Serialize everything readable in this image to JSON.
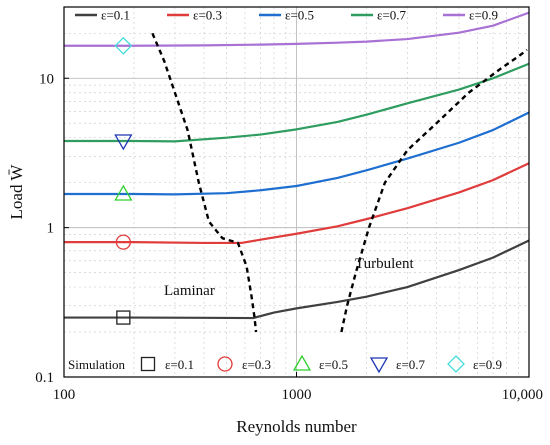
{
  "chart_data": {
    "type": "line",
    "xlabel": "Reynolds number",
    "ylabel": "Load W̄",
    "xscale": "log",
    "yscale": "log",
    "xlim": [
      100,
      10000
    ],
    "ylim": [
      0.1,
      30
    ],
    "grid": true,
    "x_ticks": [
      {
        "value": 100,
        "label": "100"
      },
      {
        "value": 1000,
        "label": "1000"
      },
      {
        "value": 10000,
        "label": "10,000"
      }
    ],
    "y_ticks": [
      {
        "value": 0.1,
        "label": "0.1"
      },
      {
        "value": 1,
        "label": "1"
      },
      {
        "value": 10,
        "label": "10"
      }
    ],
    "legend_position": "top",
    "series": [
      {
        "name": "ε=0.1",
        "color": "#404040",
        "points": [
          [
            100,
            0.25
          ],
          [
            200,
            0.25
          ],
          [
            400,
            0.249
          ],
          [
            650,
            0.248
          ],
          [
            800,
            0.27
          ],
          [
            1000,
            0.288
          ],
          [
            1500,
            0.318
          ],
          [
            2000,
            0.345
          ],
          [
            3000,
            0.4
          ],
          [
            5000,
            0.52
          ],
          [
            7000,
            0.63
          ],
          [
            10000,
            0.82
          ]
        ]
      },
      {
        "name": "ε=0.3",
        "color": "#e03c3c",
        "points": [
          [
            100,
            0.8
          ],
          [
            200,
            0.8
          ],
          [
            400,
            0.79
          ],
          [
            580,
            0.79
          ],
          [
            700,
            0.83
          ],
          [
            1000,
            0.91
          ],
          [
            1500,
            1.02
          ],
          [
            2000,
            1.14
          ],
          [
            3000,
            1.35
          ],
          [
            5000,
            1.72
          ],
          [
            7000,
            2.08
          ],
          [
            10000,
            2.7
          ]
        ]
      },
      {
        "name": "ε=0.5",
        "color": "#1f6fd1",
        "points": [
          [
            100,
            1.68
          ],
          [
            200,
            1.68
          ],
          [
            300,
            1.67
          ],
          [
            500,
            1.7
          ],
          [
            700,
            1.78
          ],
          [
            1000,
            1.9
          ],
          [
            1500,
            2.15
          ],
          [
            2000,
            2.42
          ],
          [
            3000,
            2.9
          ],
          [
            5000,
            3.7
          ],
          [
            7000,
            4.5
          ],
          [
            10000,
            5.9
          ]
        ]
      },
      {
        "name": "ε=0.7",
        "color": "#2e9d5f",
        "points": [
          [
            100,
            3.8
          ],
          [
            200,
            3.8
          ],
          [
            300,
            3.78
          ],
          [
            500,
            4.0
          ],
          [
            700,
            4.2
          ],
          [
            1000,
            4.55
          ],
          [
            1500,
            5.1
          ],
          [
            2000,
            5.7
          ],
          [
            3000,
            6.8
          ],
          [
            5000,
            8.4
          ],
          [
            7000,
            10.0
          ],
          [
            10000,
            12.5
          ]
        ]
      },
      {
        "name": "ε=0.9",
        "color": "#a871d4",
        "points": [
          [
            100,
            16.5
          ],
          [
            200,
            16.5
          ],
          [
            400,
            16.6
          ],
          [
            700,
            16.8
          ],
          [
            1000,
            17.0
          ],
          [
            1500,
            17.3
          ],
          [
            2000,
            17.6
          ],
          [
            3000,
            18.3
          ],
          [
            5000,
            20.2
          ],
          [
            7000,
            22.5
          ],
          [
            10000,
            27.5
          ]
        ]
      }
    ],
    "boundaries": [
      {
        "name": "Laminar",
        "points": [
          [
            240,
            20.0
          ],
          [
            270,
            13.0
          ],
          [
            300,
            8.0
          ],
          [
            340,
            4.5
          ],
          [
            380,
            2.0
          ],
          [
            420,
            1.1
          ],
          [
            480,
            0.85
          ],
          [
            560,
            0.79
          ],
          [
            610,
            0.55
          ],
          [
            640,
            0.35
          ],
          [
            660,
            0.25
          ],
          [
            670,
            0.2
          ]
        ]
      },
      {
        "name": "Turbulent",
        "points": [
          [
            1560,
            0.2
          ],
          [
            1650,
            0.3
          ],
          [
            1800,
            0.5
          ],
          [
            2050,
            1.0
          ],
          [
            2400,
            2.0
          ],
          [
            3000,
            3.3
          ],
          [
            4000,
            5.0
          ],
          [
            5500,
            8.0
          ],
          [
            7500,
            11.5
          ],
          [
            9000,
            14.0
          ],
          [
            9800,
            15.5
          ]
        ]
      }
    ],
    "region_labels": [
      "Laminar",
      "Turbulent"
    ],
    "simulation": {
      "label": "Simulation",
      "points": [
        {
          "name": "ε=0.1",
          "marker": "square",
          "color": "#222222",
          "x": 180,
          "y": 0.25
        },
        {
          "name": "ε=0.3",
          "marker": "circle",
          "color": "#e03c3c",
          "x": 180,
          "y": 0.8
        },
        {
          "name": "ε=0.5",
          "marker": "triangle-up",
          "color": "#2fd02f",
          "x": 180,
          "y": 1.68
        },
        {
          "name": "ε=0.7",
          "marker": "triangle-down",
          "color": "#1c36b3",
          "x": 180,
          "y": 3.8
        },
        {
          "name": "ε=0.9",
          "marker": "diamond",
          "color": "#45dcdc",
          "x": 180,
          "y": 16.5
        }
      ]
    }
  }
}
